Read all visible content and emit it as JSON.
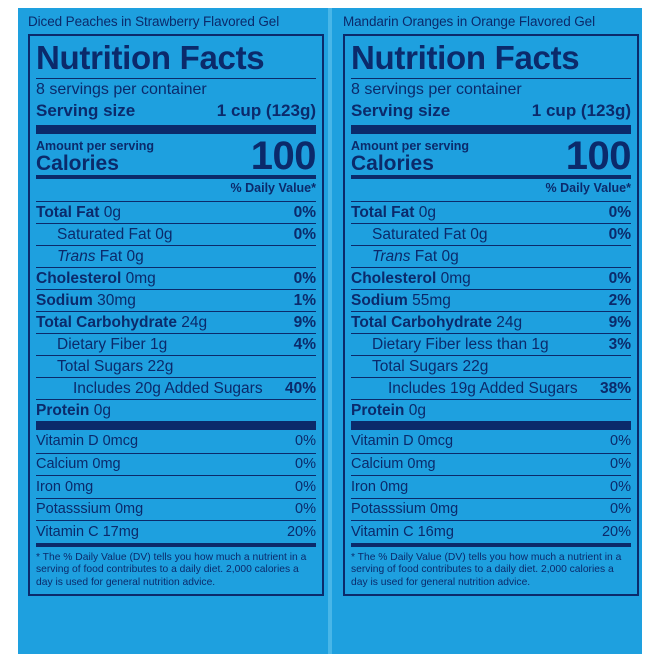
{
  "colors": {
    "background": "#1ea0df",
    "ink": "#0b2a6b"
  },
  "left": {
    "product": "Diced Peaches in Strawberry Flavored Gel",
    "title": "Nutrition Facts",
    "servings": "8 servings per container",
    "serving_size_label": "Serving size",
    "serving_size_value": "1 cup (123g)",
    "amount_per_serving": "Amount per serving",
    "calories_label": "Calories",
    "calories_value": "100",
    "dv_header": "% Daily Value*",
    "total_fat": {
      "label": "Total Fat",
      "amount": "0g",
      "pct": "0%"
    },
    "sat_fat": {
      "label": "Saturated Fat 0g",
      "pct": "0%"
    },
    "trans_fat": {
      "label_italic": "Trans",
      "label": "Fat 0g"
    },
    "cholesterol": {
      "label": "Cholesterol",
      "amount": "0mg",
      "pct": "0%"
    },
    "sodium": {
      "label": "Sodium",
      "amount": "30mg",
      "pct": "1%"
    },
    "carb": {
      "label": "Total Carbohydrate",
      "amount": "24g",
      "pct": "9%"
    },
    "fiber": {
      "label": "Dietary Fiber 1g",
      "pct": "4%"
    },
    "sugars": {
      "label": "Total Sugars 22g"
    },
    "added_sugars": {
      "label": "Includes 20g Added Sugars",
      "pct": "40%"
    },
    "protein": {
      "label": "Protein",
      "amount": "0g"
    },
    "vitamin_d": {
      "label": "Vitamin D 0mcg",
      "pct": "0%"
    },
    "calcium": {
      "label": "Calcium 0mg",
      "pct": "0%"
    },
    "iron": {
      "label": "Iron 0mg",
      "pct": "0%"
    },
    "potassium": {
      "label": "Potasssium 0mg",
      "pct": "0%"
    },
    "vitamin_c": {
      "label": "Vitamin C 17mg",
      "pct": "20%"
    },
    "footnote": "* The % Daily Value (DV) tells you how much a nutrient in a serving of food contributes to a daily diet. 2,000 calories a day is used for general nutrition advice."
  },
  "right": {
    "product": "Mandarin Oranges in Orange Flavored Gel",
    "title": "Nutrition Facts",
    "servings": "8 servings per container",
    "serving_size_label": "Serving size",
    "serving_size_value": "1 cup (123g)",
    "amount_per_serving": "Amount per serving",
    "calories_label": "Calories",
    "calories_value": "100",
    "dv_header": "% Daily Value*",
    "total_fat": {
      "label": "Total Fat",
      "amount": "0g",
      "pct": "0%"
    },
    "sat_fat": {
      "label": "Saturated Fat 0g",
      "pct": "0%"
    },
    "trans_fat": {
      "label_italic": "Trans",
      "label": "Fat 0g"
    },
    "cholesterol": {
      "label": "Cholesterol",
      "amount": "0mg",
      "pct": "0%"
    },
    "sodium": {
      "label": "Sodium",
      "amount": "55mg",
      "pct": "2%"
    },
    "carb": {
      "label": "Total Carbohydrate",
      "amount": "24g",
      "pct": "9%"
    },
    "fiber": {
      "label": "Dietary Fiber less than 1g",
      "pct": "3%"
    },
    "sugars": {
      "label": "Total Sugars 22g"
    },
    "added_sugars": {
      "label": "Includes 19g Added Sugars",
      "pct": "38%"
    },
    "protein": {
      "label": "Protein",
      "amount": "0g"
    },
    "vitamin_d": {
      "label": "Vitamin D 0mcg",
      "pct": "0%"
    },
    "calcium": {
      "label": "Calcium 0mg",
      "pct": "0%"
    },
    "iron": {
      "label": "Iron 0mg",
      "pct": "0%"
    },
    "potassium": {
      "label": "Potasssium 0mg",
      "pct": "0%"
    },
    "vitamin_c": {
      "label": "Vitamin C 16mg",
      "pct": "20%"
    },
    "footnote": "* The % Daily Value (DV) tells you how much a nutrient in a serving of food contributes to a daily diet. 2,000 calories a day is used for general nutrition advice."
  }
}
